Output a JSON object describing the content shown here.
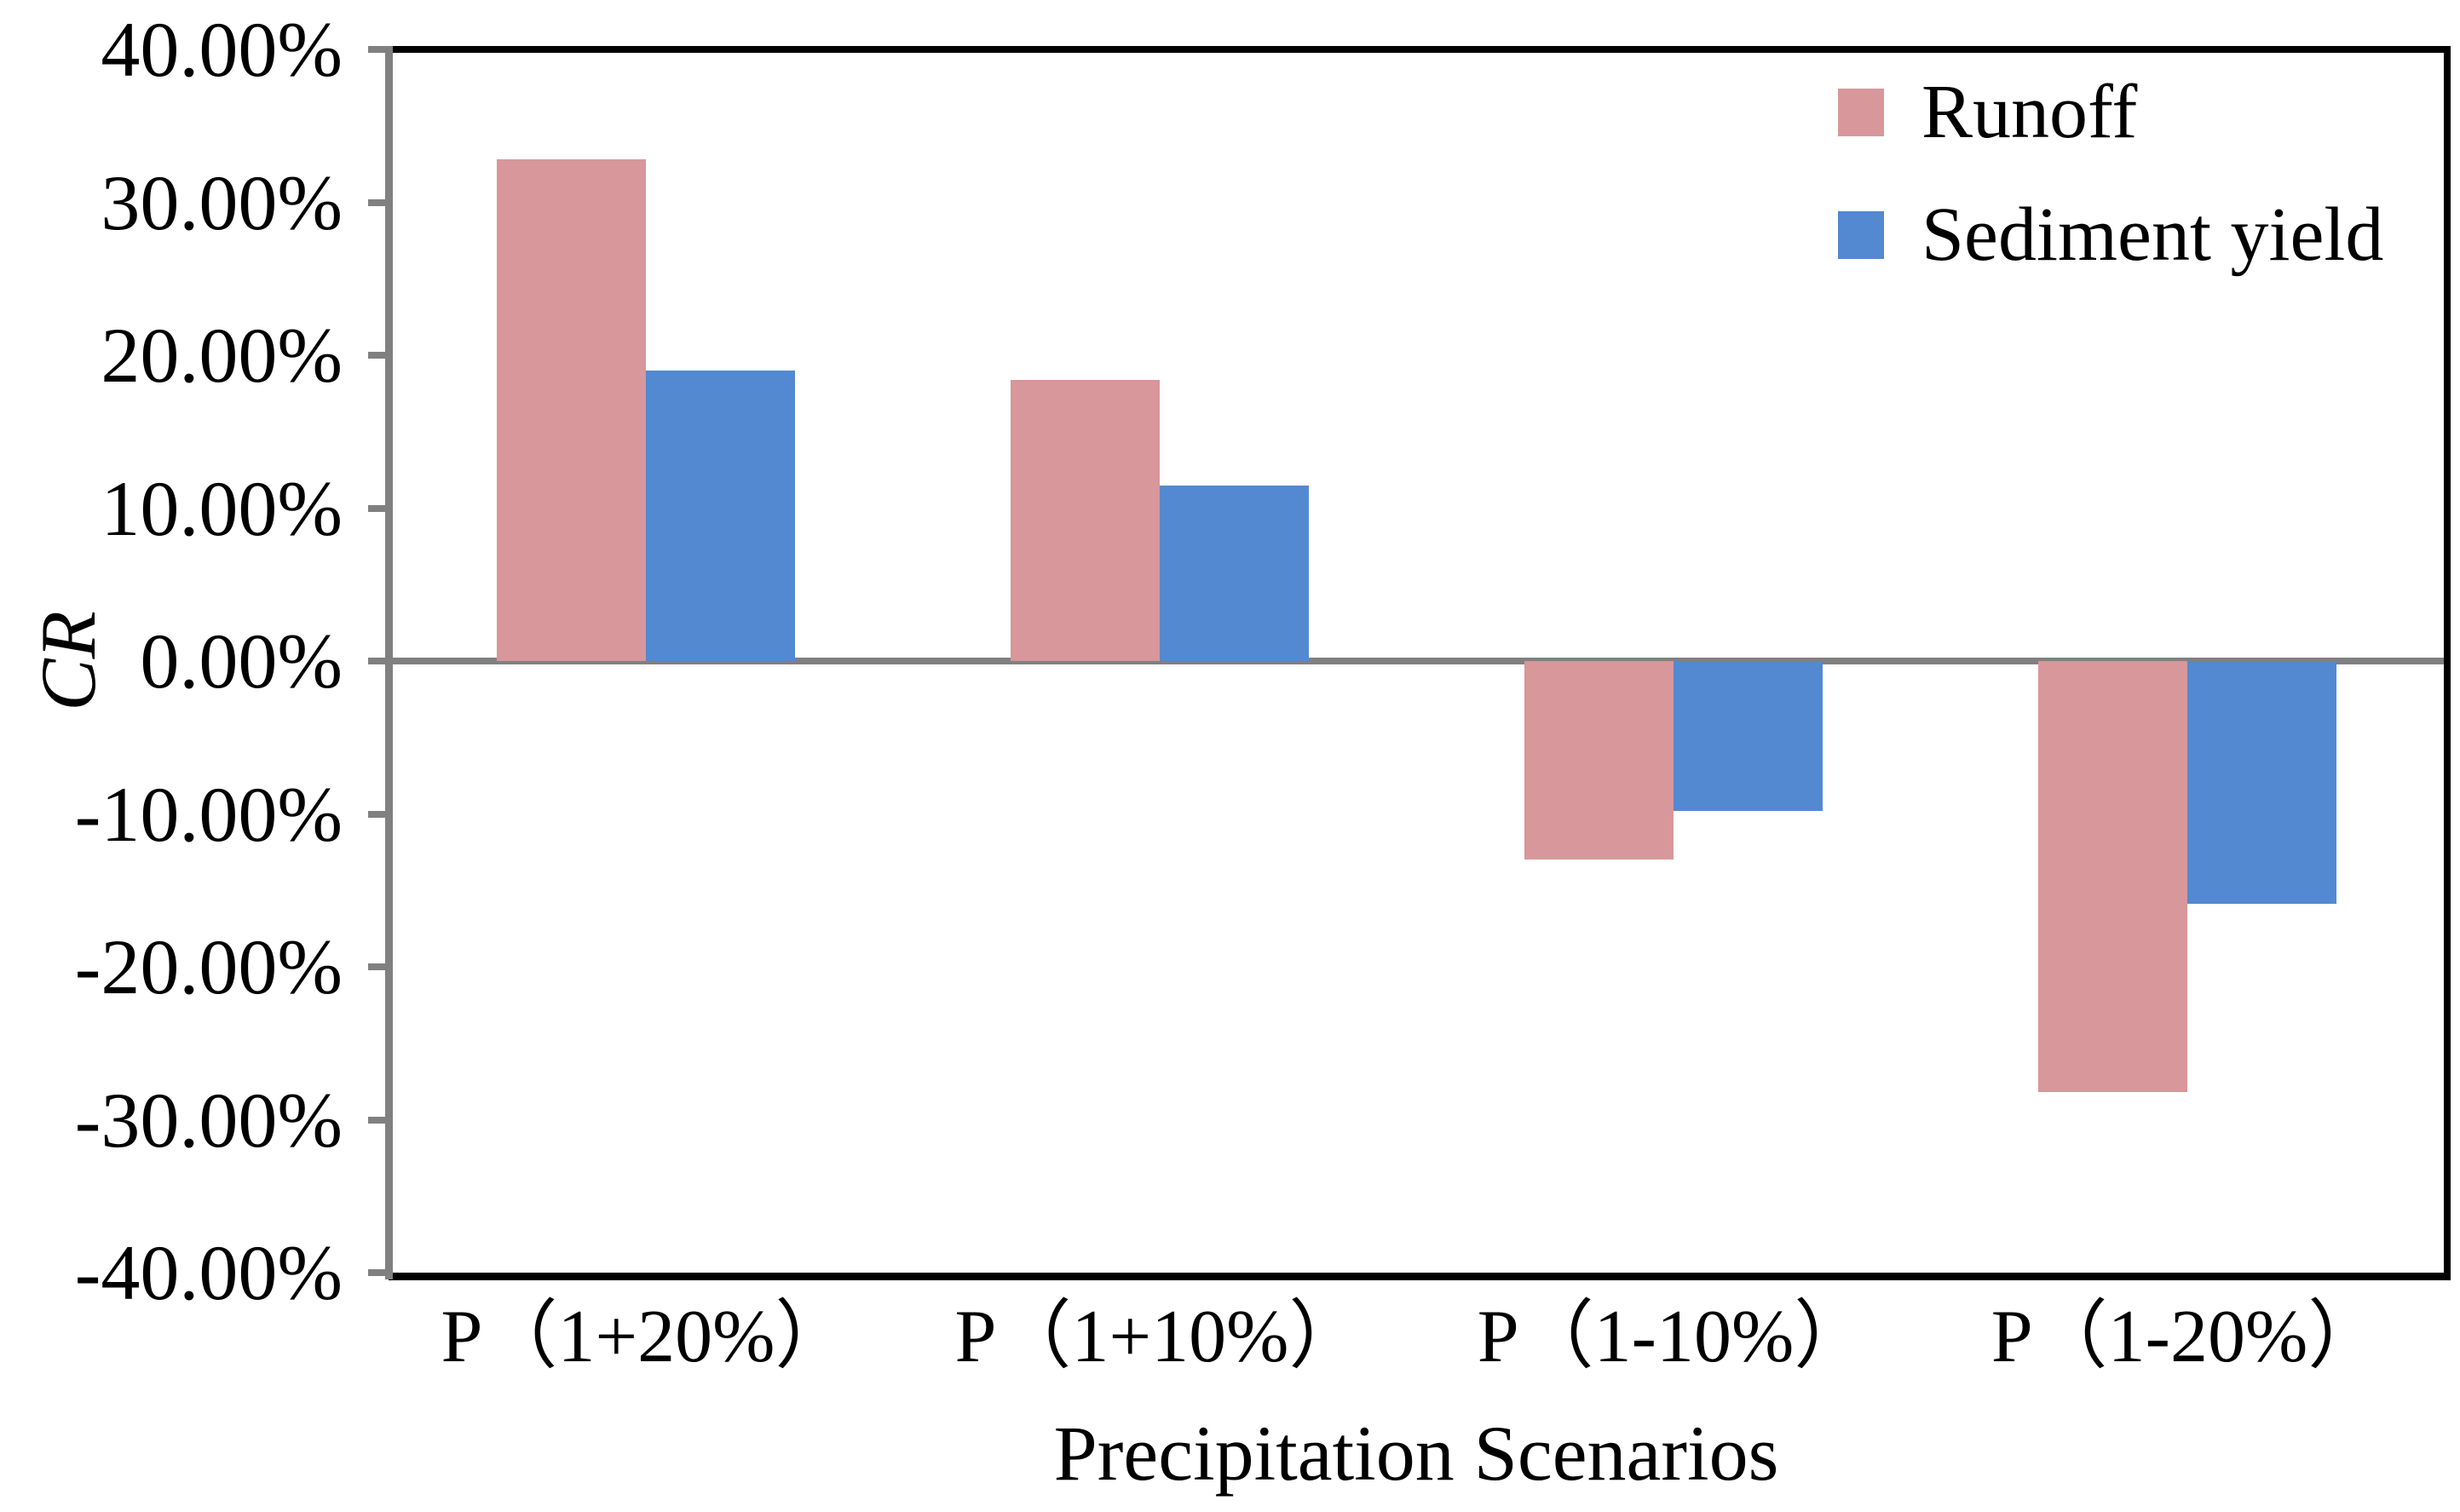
{
  "figure": {
    "background_color": "#ffffff",
    "axis_color": "#808080",
    "frame_color": "#000000"
  },
  "chart_data": {
    "type": "bar",
    "title": "",
    "categories": [
      "P（1+20%）",
      "P（1+10%）",
      "P（1-10%）",
      "P（1-20%）"
    ],
    "series": [
      {
        "name": "Runoff",
        "color": "#d8979a",
        "values": [
          32.8,
          18.4,
          -13.0,
          -28.2
        ]
      },
      {
        "name": "Sediment yield",
        "color": "#5289d0",
        "values": [
          19.0,
          11.5,
          -9.8,
          -15.9
        ]
      }
    ],
    "xlabel": "Precipitation Scenarios",
    "ylabel": "CR",
    "ylim": [
      -40,
      40
    ],
    "y_tick_step": 10,
    "y_tick_labels": [
      "40.00%",
      "30.00%",
      "20.00%",
      "10.00%",
      "0.00%",
      "-10.00%",
      "-20.00%",
      "-30.00%",
      "-40.00%"
    ],
    "grid": false,
    "zero_line": true,
    "legend_position": "top-right"
  }
}
